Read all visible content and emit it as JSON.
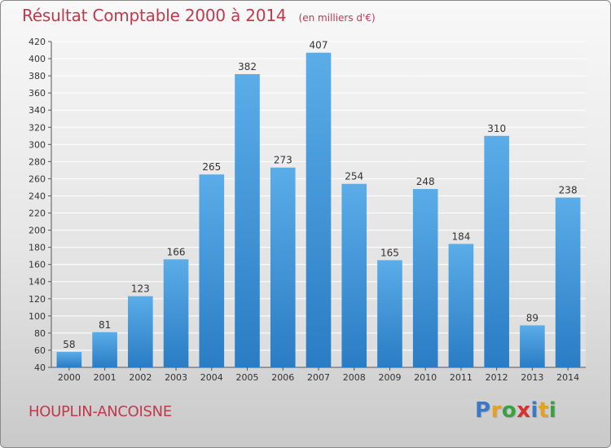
{
  "chart_data": {
    "type": "bar",
    "title": "Résultat Comptable 2000 à 2014",
    "subtitle": "(en milliers d'€)",
    "categories": [
      "2000",
      "2001",
      "2002",
      "2003",
      "2004",
      "2005",
      "2006",
      "2007",
      "2008",
      "2009",
      "2010",
      "2011",
      "2012",
      "2013",
      "2014"
    ],
    "values": [
      58,
      81,
      123,
      166,
      265,
      382,
      273,
      407,
      254,
      165,
      248,
      184,
      310,
      89,
      238
    ],
    "ylim": [
      40,
      420
    ],
    "yticks": [
      40,
      60,
      80,
      100,
      120,
      140,
      160,
      180,
      200,
      220,
      240,
      260,
      280,
      300,
      320,
      340,
      360,
      380,
      400,
      420
    ],
    "grid": true,
    "bar_color_top": "#5aade8",
    "bar_color_bottom": "#2a7cc4"
  },
  "footer": {
    "commune": "HOUPLIN-ANCOISNE",
    "logo": [
      "P",
      "r",
      "o",
      "x",
      "i",
      "t",
      "i"
    ]
  },
  "colors": {
    "accent": "#c03a4d",
    "logo": [
      "#3a78c8",
      "#e8a020",
      "#3aa040",
      "#d83030",
      "#3a78c8",
      "#e8a020",
      "#3aa040"
    ]
  }
}
